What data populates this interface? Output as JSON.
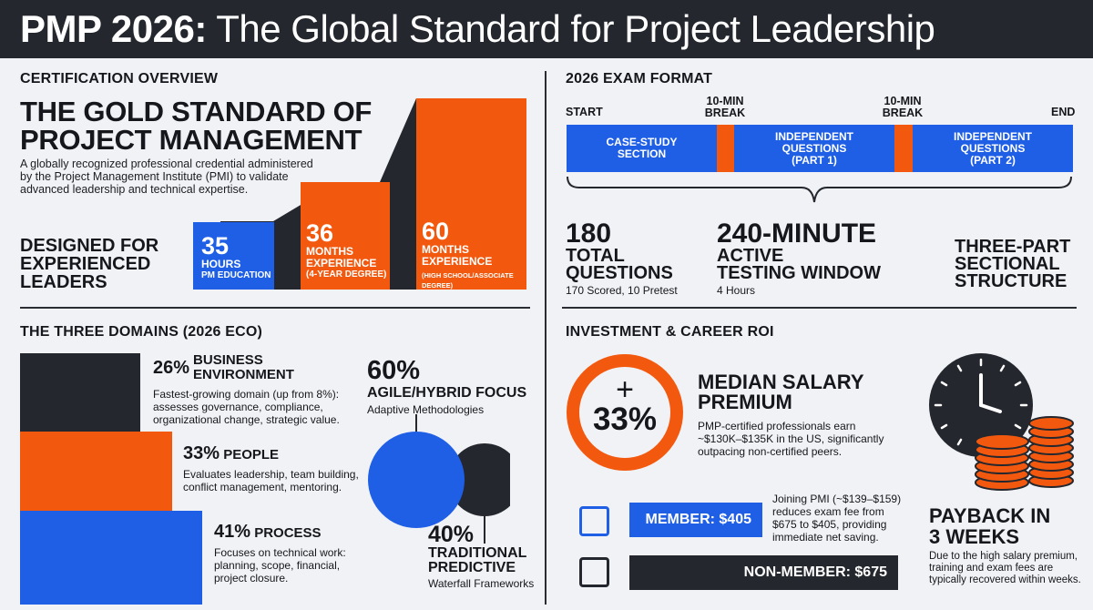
{
  "header": {
    "title_bold": "PMP 2026:",
    "title_rest": "The Global Standard for Project Leadership"
  },
  "overview": {
    "section_title": "CERTIFICATION OVERVIEW",
    "headline_line1": "THE GOLD STANDARD OF",
    "headline_line2": "PROJECT MANAGEMENT",
    "description_line1": "A globally recognized professional credential administered",
    "description_line2": "by the Project Management Institute (PMI) to validate",
    "description_line3": "advanced leadership and technical expertise.",
    "designed_line1": "DESIGNED FOR",
    "designed_line2": "EXPERIENCED",
    "designed_line3": "LEADERS",
    "steps": [
      {
        "number": "35",
        "label1": "HOURS",
        "label2": "PM EDUCATION",
        "color": "#1f5fe6"
      },
      {
        "number": "36",
        "label1": "MONTHS",
        "label2": "EXPERIENCE",
        "label3": "(4-YEAR DEGREE)",
        "color": "#f2590f"
      },
      {
        "number": "60",
        "label1": "MONTHS",
        "label2": "EXPERIENCE",
        "label3": "(HIGH SCHOOL/ASSOCIATE DEGREE)",
        "color": "#f2590f"
      }
    ]
  },
  "exam": {
    "section_title": "2026 EXAM FORMAT",
    "start_label": "START",
    "end_label": "END",
    "break_label_line1": "10-MIN",
    "break_label_line2": "BREAK",
    "segments": [
      {
        "line1": "CASE-STUDY",
        "line2": "SECTION"
      },
      {
        "line1": "INDEPENDENT",
        "line2": "QUESTIONS",
        "line3": "(PART 1)"
      },
      {
        "line1": "INDEPENDENT",
        "line2": "QUESTIONS",
        "line3": "(PART 2)"
      }
    ],
    "stat1": {
      "big": "180",
      "label1": "TOTAL",
      "label2": "QUESTIONS",
      "sub": "170 Scored, 10 Pretest"
    },
    "stat2": {
      "big": "240-MINUTE",
      "label1": "ACTIVE",
      "label2": "TESTING WINDOW",
      "sub": "4 Hours"
    },
    "stat3": {
      "label1": "THREE-PART",
      "label2": "SECTIONAL",
      "label3": "STRUCTURE"
    }
  },
  "domains": {
    "section_title": "THE THREE DOMAINS (2026 ECO)",
    "items": [
      {
        "pct": "26%",
        "name_line1": "BUSINESS",
        "name_line2": "ENVIRONMENT",
        "desc1": "Fastest-growing domain (up from 8%):",
        "desc2": "assesses governance, compliance,",
        "desc3": "organizational change, strategic value.",
        "color": "#24272e",
        "share": 26
      },
      {
        "pct": "33%",
        "name_line1": "PEOPLE",
        "desc1": "Evaluates leadership, team building,",
        "desc2": "conflict management, mentoring.",
        "color": "#f2590f",
        "share": 33
      },
      {
        "pct": "41%",
        "name_line1": "PROCESS",
        "desc1": "Focuses on technical work:",
        "desc2": "planning, scope, financial,",
        "desc3": "project closure.",
        "color": "#1f5fe6",
        "share": 41
      }
    ],
    "agile": {
      "pct": "60%",
      "label": "AGILE/HYBRID FOCUS",
      "sub": "Adaptive Methodologies",
      "share": 60,
      "color": "#1f5fe6"
    },
    "predictive": {
      "pct": "40%",
      "label1": "TRADITIONAL",
      "label2": "PREDICTIVE",
      "sub": "Waterfall Frameworks",
      "share": 40,
      "color": "#24272e"
    }
  },
  "roi": {
    "section_title": "INVESTMENT & CAREER ROI",
    "ring_plus": "+",
    "ring_value": "33%",
    "salary_line1": "MEDIAN SALARY",
    "salary_line2": "PREMIUM",
    "salary_desc1": "PMP-certified professionals earn",
    "salary_desc2": "~$130K–$135K in the US, significantly",
    "salary_desc3": "outpacing non-certified peers.",
    "member_label": "MEMBER: $405",
    "member_note1": "Joining PMI (~$139–$159)",
    "member_note2": "reduces exam fee from",
    "member_note3": "$675 to $405, providing",
    "member_note4": "immediate net saving.",
    "nonmember_label": "NON-MEMBER: $675",
    "payback_line1": "PAYBACK IN",
    "payback_line2": "3 WEEKS",
    "payback_desc1": "Due to the high salary premium,",
    "payback_desc2": "training and exam fees are",
    "payback_desc3": "typically recovered within weeks."
  },
  "colors": {
    "blue": "#1f5fe6",
    "orange": "#f2590f",
    "dark": "#24272e"
  }
}
